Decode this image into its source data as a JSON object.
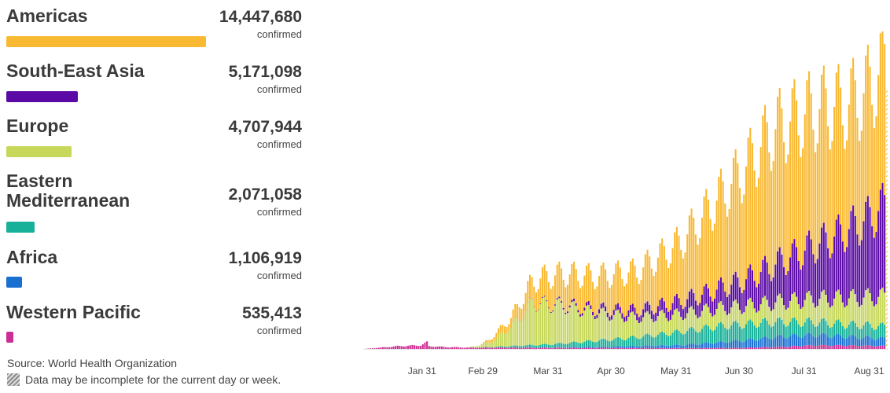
{
  "regions": [
    {
      "name": "Americas",
      "count": "14,447,680",
      "unit": "confirmed",
      "color": "#f9b932",
      "bar_fraction": 1.0
    },
    {
      "name": "South-East Asia",
      "count": "5,171,098",
      "unit": "confirmed",
      "color": "#5b0aa6",
      "bar_fraction": 0.358
    },
    {
      "name": "Europe",
      "count": "4,707,944",
      "unit": "confirmed",
      "color": "#c6d75a",
      "bar_fraction": 0.326
    },
    {
      "name": "Eastern Mediterranean",
      "count": "2,071,058",
      "unit": "confirmed",
      "color": "#17b199",
      "bar_fraction": 0.143
    },
    {
      "name": "Africa",
      "count": "1,106,919",
      "unit": "confirmed",
      "color": "#1a6fd1",
      "bar_fraction": 0.077
    },
    {
      "name": "Western Pacific",
      "count": "535,413",
      "unit": "confirmed",
      "color": "#cc2e93",
      "bar_fraction": 0.037
    }
  ],
  "footer": {
    "source": "Source: World Health Organization",
    "incomplete_note": "Data may be incomplete for the current day or week."
  },
  "chart_data": {
    "type": "bar",
    "stacked": true,
    "x_tick_labels": [
      "Jan 31",
      "Feb 29",
      "Mar 31",
      "Apr 30",
      "May 31",
      "Jun 30",
      "Jul 31",
      "Aug 31"
    ],
    "x_tick_days_since_jan3": [
      28,
      57,
      88,
      118,
      149,
      179,
      210,
      241
    ],
    "ylim": [
      0,
      320000
    ],
    "grid": false,
    "weekly_cycle_amplitude": 0.18,
    "last_bar_incomplete": true,
    "series": [
      {
        "name": "Western Pacific",
        "color": "#cc2e93",
        "keyframes": [
          [
            0,
            0
          ],
          [
            16,
            3000
          ],
          [
            27,
            4000
          ],
          [
            30,
            7000
          ],
          [
            31,
            3000
          ],
          [
            40,
            2000
          ],
          [
            50,
            1500
          ],
          [
            70,
            1500
          ],
          [
            100,
            1200
          ],
          [
            150,
            900
          ],
          [
            180,
            1200
          ],
          [
            200,
            2500
          ],
          [
            215,
            4000
          ],
          [
            240,
            3500
          ],
          [
            248,
            3000
          ]
        ]
      },
      {
        "name": "Africa",
        "color": "#1a6fd1",
        "keyframes": [
          [
            0,
            0
          ],
          [
            60,
            0
          ],
          [
            90,
            300
          ],
          [
            120,
            1500
          ],
          [
            150,
            3200
          ],
          [
            170,
            6000
          ],
          [
            200,
            11000
          ],
          [
            215,
            11000
          ],
          [
            235,
            9000
          ],
          [
            248,
            8000
          ]
        ]
      },
      {
        "name": "Eastern Mediterranean",
        "color": "#17b199",
        "keyframes": [
          [
            0,
            0
          ],
          [
            55,
            0
          ],
          [
            70,
            1500
          ],
          [
            90,
            3500
          ],
          [
            110,
            6500
          ],
          [
            130,
            9500
          ],
          [
            150,
            14000
          ],
          [
            170,
            17500
          ],
          [
            190,
            17000
          ],
          [
            210,
            14000
          ],
          [
            230,
            13000
          ],
          [
            248,
            13000
          ]
        ]
      },
      {
        "name": "Europe",
        "color": "#c6d75a",
        "keyframes": [
          [
            0,
            0
          ],
          [
            50,
            100
          ],
          [
            60,
            5000
          ],
          [
            70,
            20000
          ],
          [
            80,
            45000
          ],
          [
            95,
            40000
          ],
          [
            110,
            30000
          ],
          [
            130,
            21000
          ],
          [
            150,
            19000
          ],
          [
            170,
            19000
          ],
          [
            190,
            20000
          ],
          [
            210,
            24000
          ],
          [
            230,
            28000
          ],
          [
            248,
            32000
          ]
        ]
      },
      {
        "name": "South-East Asia",
        "color": "#5b0aa6",
        "keyframes": [
          [
            0,
            0
          ],
          [
            65,
            0
          ],
          [
            80,
            300
          ],
          [
            95,
            1500
          ],
          [
            110,
            4000
          ],
          [
            130,
            7500
          ],
          [
            150,
            13500
          ],
          [
            165,
            19000
          ],
          [
            180,
            27000
          ],
          [
            200,
            44000
          ],
          [
            220,
            62000
          ],
          [
            240,
            84000
          ],
          [
            248,
            97000
          ]
        ]
      },
      {
        "name": "Americas",
        "color": "#f9b932",
        "keyframes": [
          [
            0,
            0
          ],
          [
            55,
            0
          ],
          [
            70,
            10000
          ],
          [
            85,
            28000
          ],
          [
            95,
            33000
          ],
          [
            110,
            35000
          ],
          [
            130,
            42000
          ],
          [
            150,
            62000
          ],
          [
            165,
            90000
          ],
          [
            180,
            117000
          ],
          [
            195,
            145000
          ],
          [
            210,
            146000
          ],
          [
            220,
            143000
          ],
          [
            230,
            133000
          ],
          [
            240,
            138000
          ],
          [
            248,
            150000
          ]
        ]
      }
    ]
  }
}
